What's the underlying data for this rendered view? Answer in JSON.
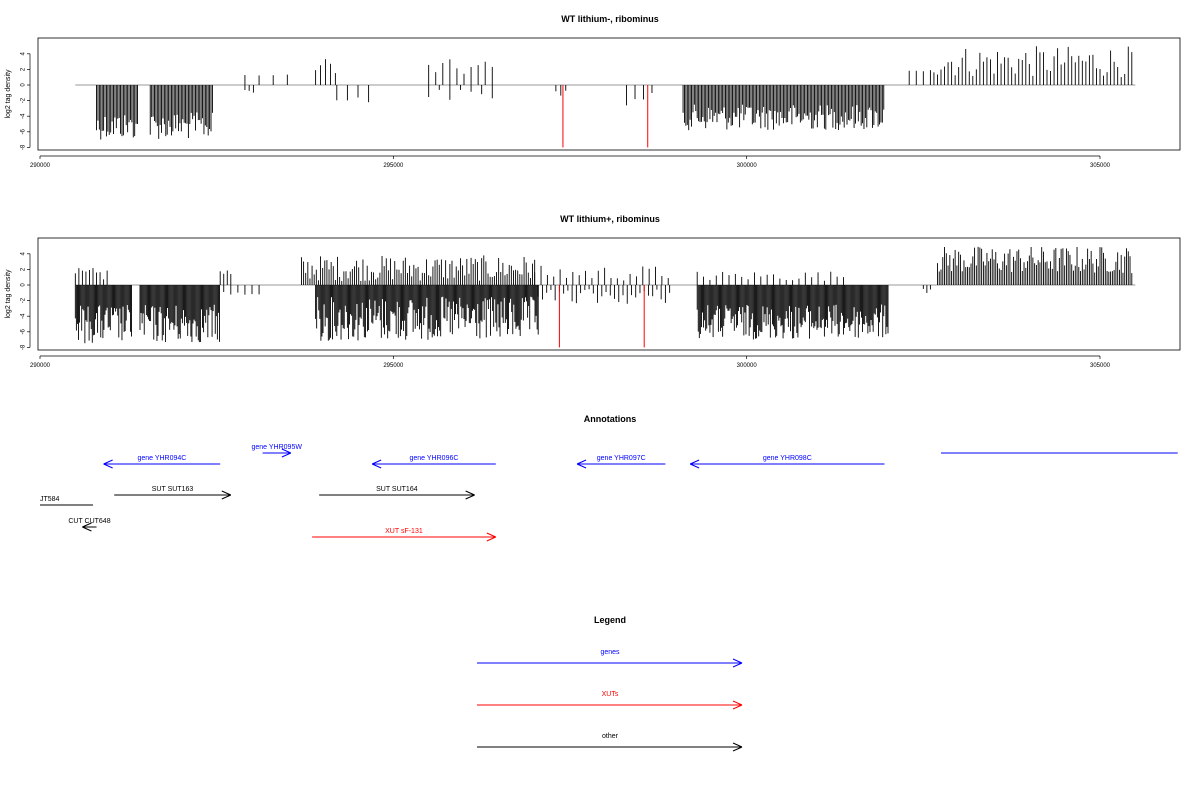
{
  "chart_data": [
    {
      "type": "bar",
      "title": "WT lithium-, ribominus",
      "ylabel": "log2 tag density",
      "xlim": [
        290000,
        306000
      ],
      "ylim": [
        -8,
        6
      ],
      "xticks": [
        "290000",
        "295000",
        "300000",
        "305000"
      ],
      "yticks": [
        "4",
        "2",
        "0",
        "-2",
        "-4",
        "-6",
        "-8"
      ],
      "baseline": {
        "from": 290500,
        "to": 305500
      },
      "series": [
        {
          "color": "#000000",
          "clusters": [
            {
              "from": 290800,
              "to": 292450,
              "sign": -1,
              "min": 3.5,
              "max": 7,
              "step": 20,
              "gap": [
                291400,
                291550
              ]
            },
            {
              "from": 292900,
              "to": 293500,
              "sign": 1,
              "min": 1,
              "max": 1.5,
              "step": 200
            },
            {
              "from": 292900,
              "to": 293050,
              "sign": -1,
              "min": 0.5,
              "max": 1,
              "step": 60
            },
            {
              "from": 293900,
              "to": 294200,
              "sign": 1,
              "min": 1.5,
              "max": 3.5,
              "step": 70
            },
            {
              "from": 294200,
              "to": 294700,
              "sign": -1,
              "min": 1,
              "max": 2.5,
              "step": 150
            },
            {
              "from": 295500,
              "to": 296400,
              "sign": 1,
              "min": 1,
              "max": 3.3,
              "step": 100
            },
            {
              "from": 295500,
              "to": 296400,
              "sign": -1,
              "min": 0.5,
              "max": 2,
              "step": 150
            },
            {
              "from": 297300,
              "to": 297500,
              "sign": -1,
              "min": 0.5,
              "max": 1.5,
              "step": 70
            },
            {
              "from": 298300,
              "to": 298700,
              "sign": -1,
              "min": 1,
              "max": 3,
              "step": 120
            },
            {
              "from": 299100,
              "to": 301950,
              "sign": -1,
              "min": 2.5,
              "max": 5.8,
              "step": 20
            },
            {
              "from": 302300,
              "to": 302500,
              "sign": 1,
              "min": 1,
              "max": 2,
              "step": 100
            },
            {
              "from": 302600,
              "to": 305450,
              "sign": 1,
              "min": 1,
              "max": 5,
              "step": 50
            }
          ]
        },
        {
          "color": "#ff0000",
          "spikes": [
            {
              "x": 297400,
              "y": -8
            },
            {
              "x": 298600,
              "y": -8
            }
          ]
        }
      ]
    },
    {
      "type": "bar",
      "title": "WT lithium+, ribominus",
      "ylabel": "log2 tag density",
      "xlim": [
        290000,
        306000
      ],
      "ylim": [
        -8,
        6
      ],
      "xticks": [
        "290000",
        "295000",
        "300000",
        "305000"
      ],
      "yticks": [
        "4",
        "2",
        "0",
        "-2",
        "-4",
        "-6",
        "-8"
      ],
      "baseline": {
        "from": 290500,
        "to": 305500
      },
      "series": [
        {
          "color": "#000000",
          "clusters": [
            {
              "from": 290500,
              "to": 290950,
              "sign": 1,
              "min": 0.5,
              "max": 2.2,
              "step": 50
            },
            {
              "from": 290500,
              "to": 292550,
              "sign": -1,
              "min": 2.5,
              "max": 7.5,
              "step": 15,
              "gap": [
                291300,
                291400
              ]
            },
            {
              "from": 292550,
              "to": 292700,
              "sign": 1,
              "min": 1,
              "max": 3,
              "step": 50
            },
            {
              "from": 292600,
              "to": 293100,
              "sign": -1,
              "min": 0.5,
              "max": 1.5,
              "step": 100
            },
            {
              "from": 293700,
              "to": 297000,
              "sign": 1,
              "min": 0.5,
              "max": 3.8,
              "step": 30
            },
            {
              "from": 293900,
              "to": 297050,
              "sign": -1,
              "min": 1.5,
              "max": 7.2,
              "step": 15
            },
            {
              "from": 297050,
              "to": 298950,
              "sign": -1,
              "min": 0.5,
              "max": 2.5,
              "step": 60
            },
            {
              "from": 297000,
              "to": 298900,
              "sign": 1,
              "min": 0.5,
              "max": 2.5,
              "step": 90
            },
            {
              "from": 299300,
              "to": 302000,
              "sign": -1,
              "min": 2.5,
              "max": 7,
              "step": 15
            },
            {
              "from": 299300,
              "to": 301400,
              "sign": 1,
              "min": 0.5,
              "max": 1.8,
              "step": 90
            },
            {
              "from": 302500,
              "to": 302600,
              "sign": -1,
              "min": 0.5,
              "max": 1.5,
              "step": 50
            },
            {
              "from": 302700,
              "to": 305450,
              "sign": 1,
              "min": 1.5,
              "max": 5,
              "step": 25
            }
          ]
        },
        {
          "color": "#ff0000",
          "spikes": [
            {
              "x": 297350,
              "y": -8
            },
            {
              "x": 298550,
              "y": -8
            }
          ]
        }
      ]
    }
  ],
  "annotations": {
    "title": "Annotations",
    "features": [
      {
        "label": "gene YHR094C",
        "color": "#0000ff",
        "from": 292550,
        "to": 290900,
        "row": 1
      },
      {
        "label": "gene YHR095W",
        "color": "#0000ff",
        "from": 293150,
        "to": 293550,
        "row": 0
      },
      {
        "label": "gene YHR096C",
        "color": "#0000ff",
        "from": 296450,
        "to": 294700,
        "row": 1
      },
      {
        "label": "gene YHR097C",
        "color": "#0000ff",
        "from": 298850,
        "to": 297600,
        "row": 1
      },
      {
        "label": "gene YHR098C",
        "color": "#0000ff",
        "from": 301950,
        "to": 299200,
        "row": 1
      },
      {
        "label": "",
        "color": "#0000ff",
        "from": 302750,
        "to": 306100,
        "row": 2,
        "noarrow": true
      },
      {
        "label": "SUT SUT163",
        "color": "#000000",
        "from": 291050,
        "to": 292700,
        "row": 3
      },
      {
        "label": "SUT SUT164",
        "color": "#000000",
        "from": 293950,
        "to": 296150,
        "row": 3
      },
      {
        "label": "JT584",
        "color": "#000000",
        "from": 290000,
        "to": 290750,
        "row": 4,
        "noarrow": true,
        "labelLeft": true
      },
      {
        "label": "CUT CUT648",
        "color": "#000000",
        "from": 290800,
        "to": 290600,
        "row": 5
      },
      {
        "label": "XUT sF-131",
        "color": "#ff0000",
        "from": 293850,
        "to": 296450,
        "row": 6
      }
    ]
  },
  "legend": {
    "title": "Legend",
    "items": [
      {
        "label": "genes",
        "color": "#0000ff"
      },
      {
        "label": "XUTs",
        "color": "#ff0000"
      },
      {
        "label": "other",
        "color": "#000000"
      }
    ]
  }
}
